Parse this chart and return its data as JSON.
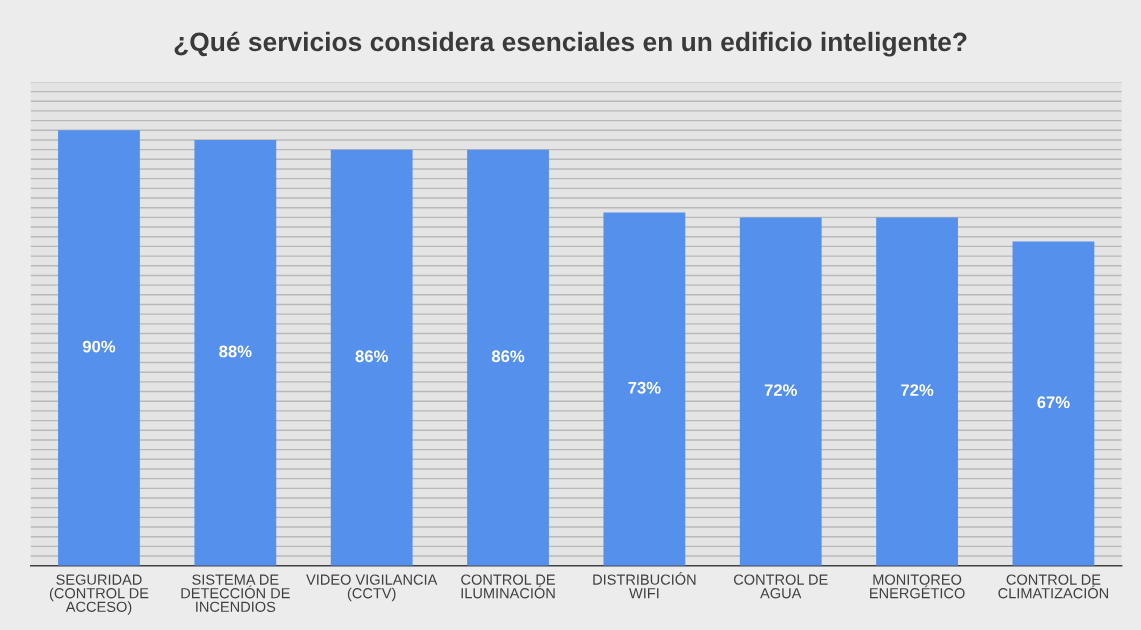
{
  "chart_data": {
    "type": "bar",
    "title": "¿Qué servicios considera esenciales en un edificio inteligente?",
    "categories": [
      "SEGURIDAD\n(CONTROL DE\nACCESO)",
      "SISTEMA DE\nDETECCIÓN DE\nINCENDIOS",
      "VIDEO VIGILANCIA\n(CCTV)",
      "CONTROL DE\nILUMINACIÓN",
      "DISTRIBUCIÓN\nWIFI",
      "CONTROL DE\nAGUA",
      "MONITOREO\nENERGÉTICO",
      "CONTROL DE\nCLIMATIZACIÓN"
    ],
    "values": [
      90,
      88,
      86,
      86,
      73,
      72,
      72,
      67
    ],
    "value_labels": [
      "90%",
      "88%",
      "86%",
      "86%",
      "73%",
      "72%",
      "72%",
      "67%"
    ],
    "color": "#5590ec",
    "ylim": [
      0,
      100
    ],
    "yticks": [
      {
        "value": 0,
        "label": null
      },
      {
        "value": 2,
        "label": null
      },
      {
        "value": 4,
        "label": null
      },
      {
        "value": 6,
        "label": null
      },
      {
        "value": 8,
        "label": null
      },
      {
        "value": 10,
        "label": null
      },
      {
        "value": 12,
        "label": null
      },
      {
        "value": 14,
        "label": null
      },
      {
        "value": 16,
        "label": null
      },
      {
        "value": 18,
        "label": null
      },
      {
        "value": 20,
        "label": null
      },
      {
        "value": 22,
        "label": null
      },
      {
        "value": 24,
        "label": null
      },
      {
        "value": 26,
        "label": null
      },
      {
        "value": 28,
        "label": null
      },
      {
        "value": 30,
        "label": null
      },
      {
        "value": 32,
        "label": null
      },
      {
        "value": 34,
        "label": null
      },
      {
        "value": 36,
        "label": null
      },
      {
        "value": 38,
        "label": null
      },
      {
        "value": 40,
        "label": null
      },
      {
        "value": 42,
        "label": null
      },
      {
        "value": 44,
        "label": null
      },
      {
        "value": 46,
        "label": null
      },
      {
        "value": 48,
        "label": null
      },
      {
        "value": 50,
        "label": null
      },
      {
        "value": 52,
        "label": null
      },
      {
        "value": 54,
        "label": null
      },
      {
        "value": 56,
        "label": null
      },
      {
        "value": 58,
        "label": null
      },
      {
        "value": 60,
        "label": null
      },
      {
        "value": 62,
        "label": null
      },
      {
        "value": 64,
        "label": null
      },
      {
        "value": 66,
        "label": null
      },
      {
        "value": 68,
        "label": null
      },
      {
        "value": 70,
        "label": null
      },
      {
        "value": 72,
        "label": null
      },
      {
        "value": 74,
        "label": null
      },
      {
        "value": 76,
        "label": null
      },
      {
        "value": 78,
        "label": null
      },
      {
        "value": 80,
        "label": null
      },
      {
        "value": 82,
        "label": null
      },
      {
        "value": 84,
        "label": null
      },
      {
        "value": 86,
        "label": null
      },
      {
        "value": 88,
        "label": null
      },
      {
        "value": 90,
        "label": null
      },
      {
        "value": 92,
        "label": null
      },
      {
        "value": 94,
        "label": null
      },
      {
        "value": 96,
        "label": null
      },
      {
        "value": 98,
        "label": null
      },
      {
        "value": 100,
        "label": null
      }
    ],
    "grid": "y",
    "tick_labels": "x"
  }
}
